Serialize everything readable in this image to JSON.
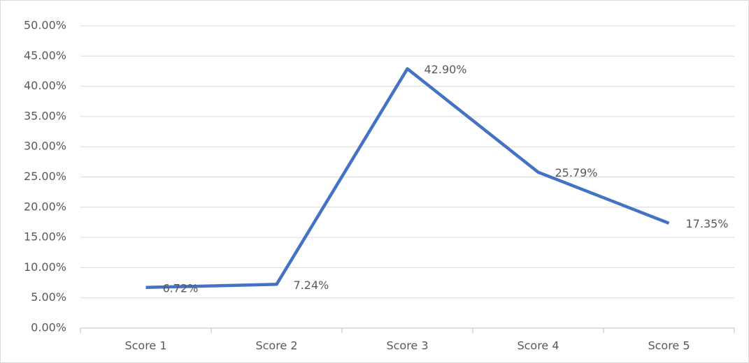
{
  "chart_data": {
    "type": "line",
    "categories": [
      "Score 1",
      "Score 2",
      "Score 3",
      "Score 4",
      "Score 5"
    ],
    "series": [
      {
        "name": "Share",
        "color": "#4472c4",
        "values": [
          6.72,
          7.24,
          42.9,
          25.79,
          17.35
        ],
        "value_labels": [
          "6.72%",
          "7.24%",
          "42.90%",
          "25.79%",
          "17.35%"
        ]
      }
    ],
    "ylim": [
      0,
      50
    ],
    "yticks": [
      {
        "value": 0,
        "label": "0.00%"
      },
      {
        "value": 5,
        "label": "5.00%"
      },
      {
        "value": 10,
        "label": "10.00%"
      },
      {
        "value": 15,
        "label": "15.00%"
      },
      {
        "value": 20,
        "label": "20.00%"
      },
      {
        "value": 25,
        "label": "25.00%"
      },
      {
        "value": 30,
        "label": "30.00%"
      },
      {
        "value": 35,
        "label": "35.00%"
      },
      {
        "value": 40,
        "label": "40.00%"
      },
      {
        "value": 45,
        "label": "45.00%"
      },
      {
        "value": 50,
        "label": "50.00%"
      }
    ],
    "grid": true
  }
}
